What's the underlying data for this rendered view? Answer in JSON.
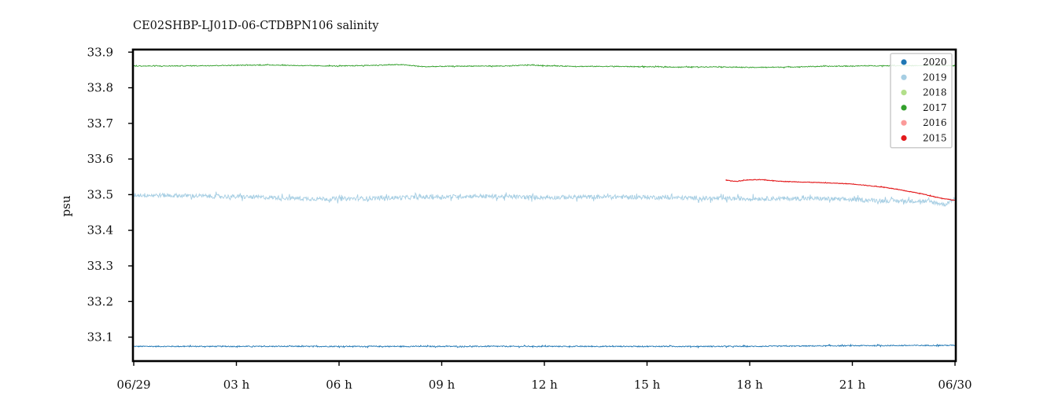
{
  "chart_data": {
    "type": "line",
    "title": "CE02SHBP-LJ01D-06-CTDBPN106 salinity",
    "xlabel": "",
    "ylabel": "psu",
    "x_ticks": [
      "06/29",
      "03 h",
      "06 h",
      "09 h",
      "12 h",
      "15 h",
      "18 h",
      "21 h",
      "06/30"
    ],
    "x_range_hours": [
      0,
      24
    ],
    "ylim": [
      33.035,
      33.905
    ],
    "y_ticks": [
      "33.1",
      "33.2",
      "33.3",
      "33.4",
      "33.5",
      "33.6",
      "33.7",
      "33.8",
      "33.9"
    ],
    "y_tick_values": [
      33.1,
      33.2,
      33.3,
      33.4,
      33.5,
      33.6,
      33.7,
      33.8,
      33.9
    ],
    "legend_position": "top-right",
    "grid": false,
    "series": [
      {
        "name": "2020",
        "color": "#1f77b4",
        "points": [
          [
            0,
            33.074
          ],
          [
            3,
            33.074
          ],
          [
            6,
            33.074
          ],
          [
            9,
            33.074
          ],
          [
            12,
            33.074
          ],
          [
            15,
            33.074
          ],
          [
            18,
            33.074
          ],
          [
            21,
            33.076
          ],
          [
            24,
            33.077
          ]
        ],
        "noise": 0.0015
      },
      {
        "name": "2019",
        "color": "#a6cee3",
        "points": [
          [
            0,
            33.499
          ],
          [
            1,
            33.498
          ],
          [
            2,
            33.496
          ],
          [
            3,
            33.494
          ],
          [
            4,
            33.492
          ],
          [
            5,
            33.489
          ],
          [
            6,
            33.488
          ],
          [
            7,
            33.49
          ],
          [
            8,
            33.492
          ],
          [
            9,
            33.494
          ],
          [
            10,
            33.496
          ],
          [
            11,
            33.494
          ],
          [
            12,
            33.492
          ],
          [
            13,
            33.493
          ],
          [
            14,
            33.494
          ],
          [
            15,
            33.493
          ],
          [
            16,
            33.491
          ],
          [
            17,
            33.489
          ],
          [
            18,
            33.489
          ],
          [
            19,
            33.489
          ],
          [
            20,
            33.489
          ],
          [
            21,
            33.486
          ],
          [
            22,
            33.483
          ],
          [
            23,
            33.482
          ],
          [
            23.4,
            33.478
          ],
          [
            23.7,
            33.472
          ],
          [
            24,
            33.49
          ]
        ],
        "noise": 0.006
      },
      {
        "name": "2018",
        "color": "#b2df8a",
        "points": []
      },
      {
        "name": "2017",
        "color": "#33a02c",
        "points": [
          [
            0,
            33.861
          ],
          [
            1,
            33.861
          ],
          [
            2,
            33.862
          ],
          [
            3,
            33.863
          ],
          [
            4,
            33.864
          ],
          [
            5,
            33.862
          ],
          [
            6,
            33.861
          ],
          [
            7,
            33.863
          ],
          [
            7.8,
            33.865
          ],
          [
            8.5,
            33.859
          ],
          [
            9,
            33.86
          ],
          [
            10,
            33.861
          ],
          [
            11,
            33.861
          ],
          [
            11.5,
            33.864
          ],
          [
            12,
            33.862
          ],
          [
            13,
            33.86
          ],
          [
            14,
            33.86
          ],
          [
            15,
            33.859
          ],
          [
            16,
            33.858
          ],
          [
            17,
            33.859
          ],
          [
            18,
            33.857
          ],
          [
            19,
            33.858
          ],
          [
            20,
            33.86
          ],
          [
            21,
            33.861
          ],
          [
            22,
            33.862
          ],
          [
            23,
            33.862
          ],
          [
            24,
            33.862
          ]
        ],
        "noise": 0.0012
      },
      {
        "name": "2016",
        "color": "#fb9a99",
        "points": []
      },
      {
        "name": "2015",
        "color": "#e31a1c",
        "points": [
          [
            17.3,
            33.541
          ],
          [
            17.6,
            33.537
          ],
          [
            17.9,
            33.541
          ],
          [
            18.3,
            33.542
          ],
          [
            19,
            33.537
          ],
          [
            20,
            33.534
          ],
          [
            21,
            33.53
          ],
          [
            22,
            33.52
          ],
          [
            23,
            33.503
          ],
          [
            23.6,
            33.49
          ],
          [
            24,
            33.484
          ]
        ],
        "noise": 0.0008
      }
    ]
  }
}
